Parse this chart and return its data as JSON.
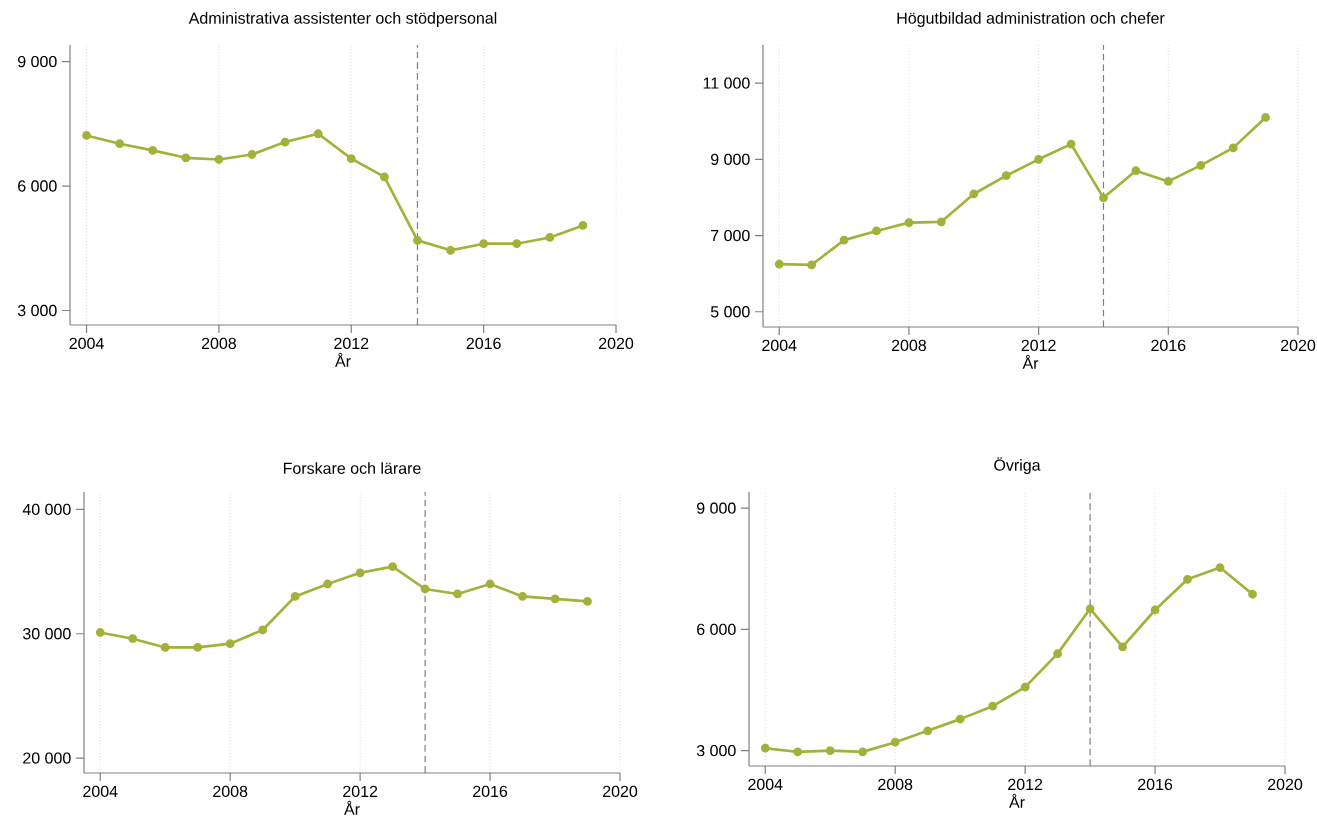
{
  "chart_data": [
    {
      "type": "line",
      "title": "Administrativa assistenter och stödpersonal",
      "xlabel": "År",
      "x": [
        2004,
        2005,
        2006,
        2007,
        2008,
        2009,
        2010,
        2011,
        2012,
        2013,
        2014,
        2015,
        2016,
        2017,
        2018,
        2019
      ],
      "series": [
        {
          "color": "#a3b13a",
          "values": [
            7220,
            7020,
            6860,
            6680,
            6640,
            6760,
            7060,
            7260,
            6660,
            6220,
            4690,
            4450,
            4610,
            4610,
            4760,
            5050
          ]
        }
      ],
      "xlim": [
        2003.5,
        2020
      ],
      "xticks": [
        2004,
        2008,
        2012,
        2016,
        2020
      ],
      "ylim": [
        2650,
        9400
      ],
      "yticks": [
        {
          "value": 3000,
          "label": "3 000"
        },
        {
          "value": 6000,
          "label": "6 000"
        },
        {
          "value": 9000,
          "label": "9 000"
        }
      ],
      "grid": "x",
      "marker": "circle",
      "line_style": "solid",
      "ref_lines": [
        {
          "axis": "x",
          "value": 2014,
          "color": "#808080",
          "line_style": "dashed"
        }
      ]
    },
    {
      "type": "line",
      "title": "Högutbildad administration och chefer",
      "xlabel": "År",
      "x": [
        2004,
        2005,
        2006,
        2007,
        2008,
        2009,
        2010,
        2011,
        2012,
        2013,
        2014,
        2015,
        2016,
        2017,
        2018,
        2019
      ],
      "series": [
        {
          "color": "#a3b13a",
          "values": [
            6250,
            6230,
            6880,
            7120,
            7340,
            7360,
            8090,
            8570,
            9000,
            9400,
            7990,
            8700,
            8420,
            8840,
            9300,
            10100
          ]
        }
      ],
      "xlim": [
        2003.5,
        2020
      ],
      "xticks": [
        2004,
        2008,
        2012,
        2016,
        2020
      ],
      "ylim": [
        4600,
        12000
      ],
      "yticks": [
        {
          "value": 5000,
          "label": "5 000"
        },
        {
          "value": 7000,
          "label": "7 000"
        },
        {
          "value": 9000,
          "label": "9 000"
        },
        {
          "value": 11000,
          "label": "11 000"
        }
      ],
      "grid": "x",
      "marker": "circle",
      "line_style": "solid",
      "ref_lines": [
        {
          "axis": "x",
          "value": 2014,
          "color": "#808080",
          "line_style": "dashed"
        }
      ]
    },
    {
      "type": "line",
      "title": "Forskare och lärare",
      "xlabel": "År",
      "x": [
        2004,
        2005,
        2006,
        2007,
        2008,
        2009,
        2010,
        2011,
        2012,
        2013,
        2014,
        2015,
        2016,
        2017,
        2018,
        2019
      ],
      "series": [
        {
          "color": "#a3b13a",
          "values": [
            30100,
            29600,
            28900,
            28900,
            29200,
            30300,
            33000,
            34000,
            34900,
            35400,
            33600,
            33200,
            34000,
            33000,
            32800,
            32600
          ]
        }
      ],
      "xlim": [
        2003.5,
        2020
      ],
      "xticks": [
        2004,
        2008,
        2012,
        2016,
        2020
      ],
      "ylim": [
        18800,
        41400
      ],
      "yticks": [
        {
          "value": 20000,
          "label": "20 000"
        },
        {
          "value": 30000,
          "label": "30 000"
        },
        {
          "value": 40000,
          "label": "40 000"
        }
      ],
      "grid": "x",
      "marker": "circle",
      "line_style": "solid",
      "ref_lines": [
        {
          "axis": "x",
          "value": 2014,
          "color": "#808080",
          "line_style": "dashed"
        }
      ]
    },
    {
      "type": "line",
      "title": "Övriga",
      "xlabel": "År",
      "x": [
        2004,
        2005,
        2006,
        2007,
        2008,
        2009,
        2010,
        2011,
        2012,
        2013,
        2014,
        2015,
        2016,
        2017,
        2018,
        2019
      ],
      "series": [
        {
          "color": "#a3b13a",
          "values": [
            3060,
            2970,
            3000,
            2970,
            3210,
            3490,
            3780,
            4100,
            4570,
            5400,
            6510,
            5570,
            6480,
            7240,
            7530,
            6870
          ]
        }
      ],
      "xlim": [
        2003.5,
        2020
      ],
      "xticks": [
        2004,
        2008,
        2012,
        2016,
        2020
      ],
      "ylim": [
        2620,
        9400
      ],
      "yticks": [
        {
          "value": 3000,
          "label": "3 000"
        },
        {
          "value": 6000,
          "label": "6 000"
        },
        {
          "value": 9000,
          "label": "9 000"
        }
      ],
      "grid": "x",
      "marker": "circle",
      "line_style": "solid",
      "ref_lines": [
        {
          "axis": "x",
          "value": 2014,
          "color": "#808080",
          "line_style": "dashed"
        }
      ]
    }
  ]
}
